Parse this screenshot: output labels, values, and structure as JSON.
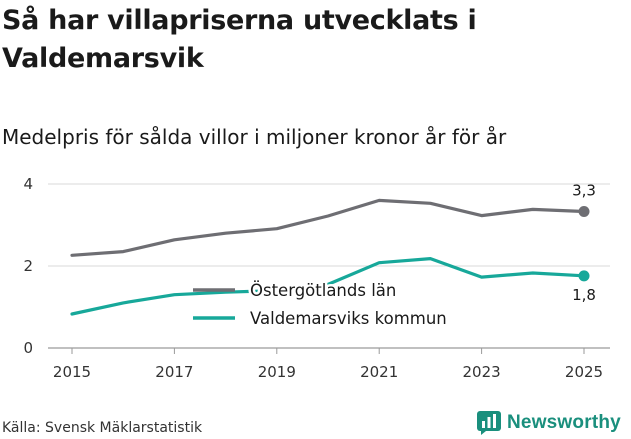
{
  "title": "Så har villapriserna utvecklats i Valdemarsvik",
  "subtitle": "Medelpris för sålda villor i miljoner kronor år för år",
  "source": "Källa: Svensk Mäklarstatistik",
  "brand": {
    "name": "Newsworthy",
    "icon": "newsworthy-logo-icon"
  },
  "colors": {
    "series1": "#6e6e73",
    "series2": "#17a89a",
    "grid": "#d9d9d9",
    "brand": "#1a8f7d"
  },
  "chart_data": {
    "type": "line",
    "title": "Så har villapriserna utvecklats i Valdemarsvik",
    "subtitle": "Medelpris för sålda villor i miljoner kronor år för år",
    "x": [
      2015,
      2016,
      2017,
      2018,
      2019,
      2020,
      2021,
      2022,
      2023,
      2024,
      2025
    ],
    "xticks": [
      "2015",
      "2017",
      "2019",
      "2021",
      "2023",
      "2025"
    ],
    "yticks": [
      "0",
      "2",
      "4"
    ],
    "ylim": [
      0,
      4.2
    ],
    "grid": true,
    "legend": "center-left",
    "series": [
      {
        "name": "Östergötlands län",
        "values": [
          2.26,
          2.35,
          2.64,
          2.8,
          2.91,
          3.22,
          3.6,
          3.53,
          3.23,
          3.38,
          3.33
        ],
        "end_label": "3,3"
      },
      {
        "name": "Valdemarsviks kommun",
        "values": [
          0.83,
          1.1,
          1.3,
          1.36,
          1.4,
          1.55,
          2.08,
          2.18,
          1.73,
          1.83,
          1.76
        ],
        "end_label": "1,8"
      }
    ]
  }
}
